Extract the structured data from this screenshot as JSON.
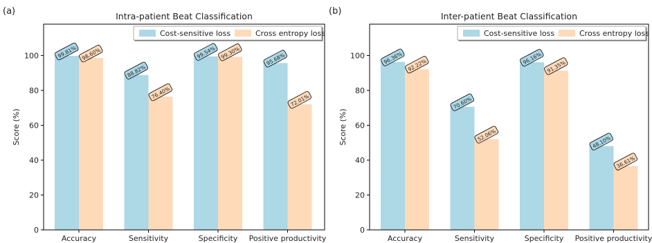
{
  "figure": {
    "panels": [
      {
        "tag": "(a)"
      },
      {
        "tag": "(b)"
      }
    ]
  },
  "chart_data": [
    {
      "type": "bar",
      "title": "Intra-patient Beat Classification",
      "xlabel": "",
      "ylabel": "Score (%)",
      "ylim": [
        0,
        118
      ],
      "yticks": [
        0,
        20,
        40,
        60,
        80,
        100
      ],
      "grid": false,
      "legend_position": "top-right",
      "categories": [
        "Accuracy",
        "Sensitivity",
        "Specificity",
        "Positive productivity"
      ],
      "series": [
        {
          "name": "Cost-sensitive loss",
          "color": "#add8e6",
          "values": [
            99.81,
            88.82,
            99.54,
            95.68
          ],
          "labels": [
            "99.81%",
            "88.82%",
            "99.54%",
            "95.68%"
          ]
        },
        {
          "name": "Cross entropy loss",
          "color": "#ffdab9",
          "values": [
            98.6,
            76.4,
            99.3,
            72.01
          ],
          "labels": [
            "98.60%",
            "76.40%",
            "99.30%",
            "72.01%"
          ]
        }
      ]
    },
    {
      "type": "bar",
      "title": "Inter-patient Beat Classification",
      "xlabel": "",
      "ylabel": "Score (%)",
      "ylim": [
        0,
        118
      ],
      "yticks": [
        0,
        20,
        40,
        60,
        80,
        100
      ],
      "grid": false,
      "legend_position": "top-right",
      "categories": [
        "Accuracy",
        "Sensitivity",
        "Specificity",
        "Positive productivity"
      ],
      "series": [
        {
          "name": "Cost-sensitive loss",
          "color": "#add8e6",
          "values": [
            96.36,
            70.6,
            96.16,
            48.1
          ],
          "labels": [
            "96.36%",
            "70.60%",
            "96.16%",
            "48.10%"
          ]
        },
        {
          "name": "Cross entropy loss",
          "color": "#ffdab9",
          "values": [
            92.22,
            52.06,
            91.35,
            36.61
          ],
          "labels": [
            "92.22%",
            "52.06%",
            "91.35%",
            "36.61%"
          ]
        }
      ]
    }
  ]
}
